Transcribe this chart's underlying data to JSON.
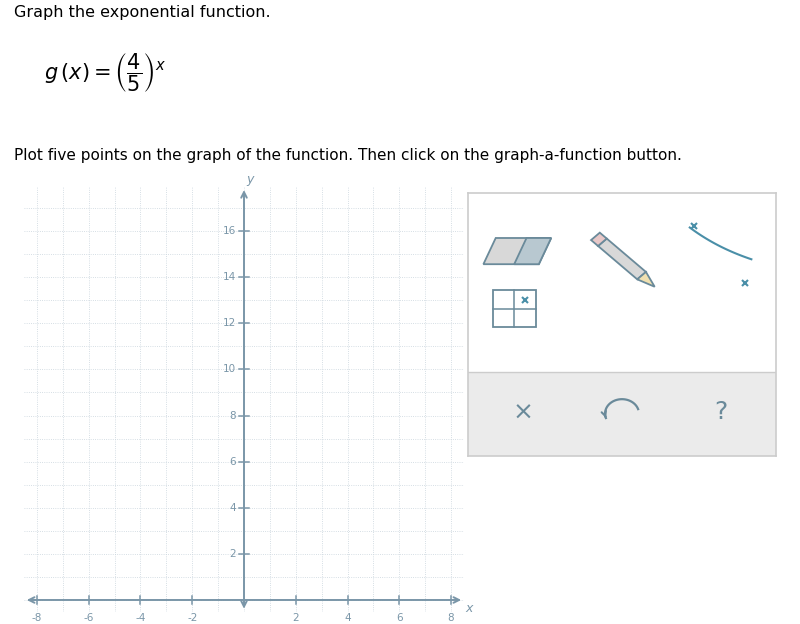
{
  "title_line1": "Graph the exponential function.",
  "instruction": "Plot five points on the graph of the function. Then click on the graph-a-function button.",
  "xlim": [
    -8,
    8
  ],
  "ylim": [
    0,
    17
  ],
  "xticks": [
    -8,
    -6,
    -4,
    -2,
    2,
    4,
    6,
    8
  ],
  "yticks": [
    2,
    4,
    6,
    8,
    10,
    12,
    14,
    16
  ],
  "grid_color": "#c8d4dc",
  "axis_color": "#7a96a8",
  "tick_label_color": "#7a96a8",
  "bg_white": "#ffffff",
  "plot_bg": "#f5f7f9",
  "panel_bg": "#ffffff",
  "panel_bottom_bg": "#ebebeb",
  "panel_border": "#cccccc",
  "icon_color": "#6a8a9a",
  "teal_color": "#4a8fa8"
}
